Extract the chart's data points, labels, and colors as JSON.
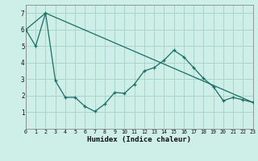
{
  "xlabel": "Humidex (Indice chaleur)",
  "background_color": "#ceeee8",
  "grid_color": "#aad4ce",
  "line_color": "#1a6e64",
  "line1_x": [
    0,
    1,
    2,
    3,
    4,
    5,
    6,
    7,
    8,
    9,
    10,
    11,
    12,
    13,
    14,
    15,
    16,
    17,
    18,
    19,
    20,
    21,
    22,
    23
  ],
  "line1_y": [
    6.0,
    5.0,
    7.0,
    2.9,
    1.9,
    1.9,
    1.35,
    1.05,
    1.5,
    2.2,
    2.15,
    2.7,
    3.5,
    3.7,
    4.15,
    4.75,
    4.35,
    3.7,
    3.05,
    2.55,
    1.7,
    1.9,
    1.75,
    1.6
  ],
  "line2_x": [
    0,
    2,
    23
  ],
  "line2_y": [
    6.0,
    7.0,
    1.6
  ],
  "xlim": [
    0,
    23
  ],
  "ylim": [
    0,
    7.5
  ],
  "yticks": [
    1,
    2,
    3,
    4,
    5,
    6,
    7
  ],
  "xticks": [
    0,
    1,
    2,
    3,
    4,
    5,
    6,
    7,
    8,
    9,
    10,
    11,
    12,
    13,
    14,
    15,
    16,
    17,
    18,
    19,
    20,
    21,
    22,
    23
  ]
}
